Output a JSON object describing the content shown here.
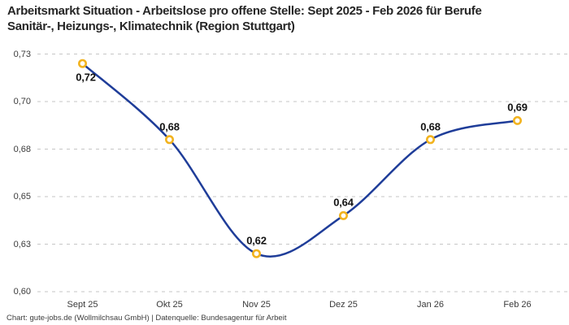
{
  "title": "Arbeitsmarkt Situation - Arbeitslose pro offene Stelle: Sept 2025 - Feb 2026 für Berufe Sanitär-, Heizungs-, Klimatechnik (Region Stuttgart)",
  "footer": "Chart: gute-jobs.de (Wollmilchsau GmbH) | Datenquelle: Bundesagentur für Arbeit",
  "colors": {
    "line": "#1F3D99",
    "marker_ring": "#F2B31F",
    "marker_fill": "#FFFFFF",
    "gridline": "#C6C6C6",
    "title_text": "#262626",
    "axis_text": "#3A3A3A",
    "point_label_text": "#131313",
    "background": "#FFFFFF"
  },
  "chart_data": {
    "type": "line",
    "title": "Arbeitsmarkt Situation - Arbeitslose pro offene Stelle: Sept 2025 - Feb 2026 für Berufe Sanitär-, Heizungs-, Klimatechnik (Region Stuttgart)",
    "categories": [
      "Sept 25",
      "Okt 25",
      "Nov 25",
      "Dez 25",
      "Jan 26",
      "Feb 26"
    ],
    "values": [
      0.72,
      0.68,
      0.62,
      0.64,
      0.68,
      0.69
    ],
    "point_labels": [
      "0,72",
      "0,68",
      "0,62",
      "0,64",
      "0,68",
      "0,69"
    ],
    "series_name": "Arbeitslose pro offene Stelle",
    "xlabel": "",
    "ylabel": "",
    "ylim": [
      0.6,
      0.725
    ],
    "ytick_values": [
      0.725,
      0.7,
      0.675,
      0.65,
      0.625,
      0.6
    ],
    "ytick_labels": [
      "0,73",
      "0,70",
      "0,68",
      "0,65",
      "0,63",
      "0,60"
    ],
    "grid": "horizontal-dashed",
    "legend": "none",
    "smooth": true,
    "source": "Chart: gute-jobs.de (Wollmilchsau GmbH) | Datenquelle: Bundesagentur für Arbeit"
  }
}
